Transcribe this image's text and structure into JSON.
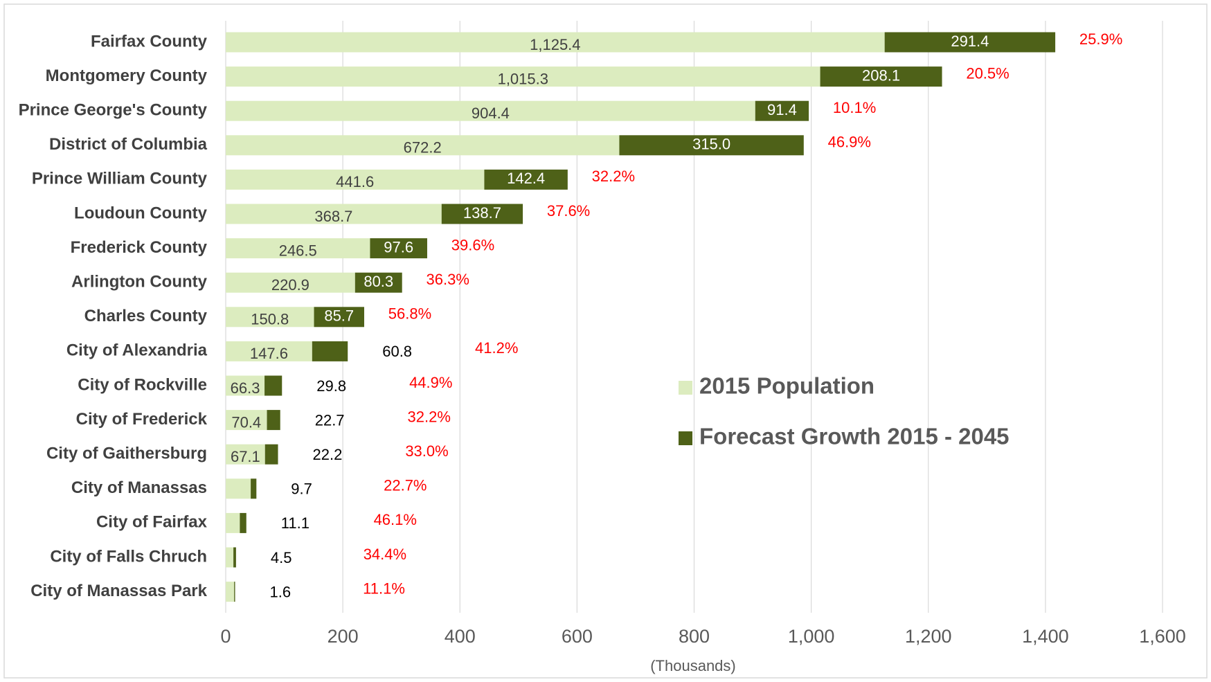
{
  "chart_data": {
    "type": "stacked-bar-horizontal",
    "categories": [
      "Fairfax County",
      "Montgomery County",
      "Prince George's County",
      "District of Columbia",
      "Prince William County",
      "Loudoun County",
      "Frederick County",
      "Arlington County",
      "Charles County",
      "City of Alexandria",
      "City of Rockville",
      "City of Frederick",
      "City of Gaithersburg",
      "City of Manassas",
      "City of Fairfax",
      "City of Falls Chruch",
      "City of Manassas Park"
    ],
    "series": [
      {
        "name": "2015 Population",
        "color": "#dcecbf",
        "values": [
          1125.4,
          1015.3,
          904.4,
          672.2,
          441.6,
          368.7,
          246.5,
          220.9,
          150.8,
          147.6,
          66.3,
          70.4,
          67.1,
          42.7,
          24.1,
          13.1,
          14.4
        ],
        "value_labels": [
          "1,125.4",
          "1,015.3",
          "904.4",
          "672.2",
          "441.6",
          "368.7",
          "246.5",
          "220.9",
          "150.8",
          "147.6",
          "66.3",
          "70.4",
          "67.1",
          null,
          null,
          null,
          null
        ]
      },
      {
        "name": "Forecast Growth 2015 - 2045",
        "color": "#4e6118",
        "values": [
          291.4,
          208.1,
          91.4,
          315,
          142.4,
          138.7,
          97.6,
          80.3,
          85.7,
          60.8,
          29.8,
          22.7,
          22.2,
          9.7,
          11.1,
          4.5,
          1.6
        ],
        "value_labels": [
          "291.4",
          "208.1",
          "91.4",
          "315.0",
          "142.4",
          "138.7",
          "97.6",
          "80.3",
          "85.7",
          "60.8",
          "29.8",
          "22.7",
          "22.2",
          "9.7",
          "11.1",
          "4.5",
          "1.6"
        ]
      }
    ],
    "growth_percent_labels": [
      "25.9%",
      "20.5%",
      "10.1%",
      "46.9%",
      "32.2%",
      "37.6%",
      "39.6%",
      "36.3%",
      "56.8%",
      "41.2%",
      "44.9%",
      "32.2%",
      "33.0%",
      "22.7%",
      "46.1%",
      "34.4%",
      "11.1%"
    ],
    "x_label": "(Thousands)",
    "xlim": [
      0,
      1600
    ],
    "xticks": [
      0,
      200,
      400,
      600,
      800,
      {
        "value": 1000,
        "label": "1,000"
      },
      {
        "value": 1200,
        "label": "1,200"
      },
      {
        "value": 1400,
        "label": "1,400"
      },
      {
        "value": 1600,
        "label": "1,600"
      }
    ],
    "grid": true
  }
}
